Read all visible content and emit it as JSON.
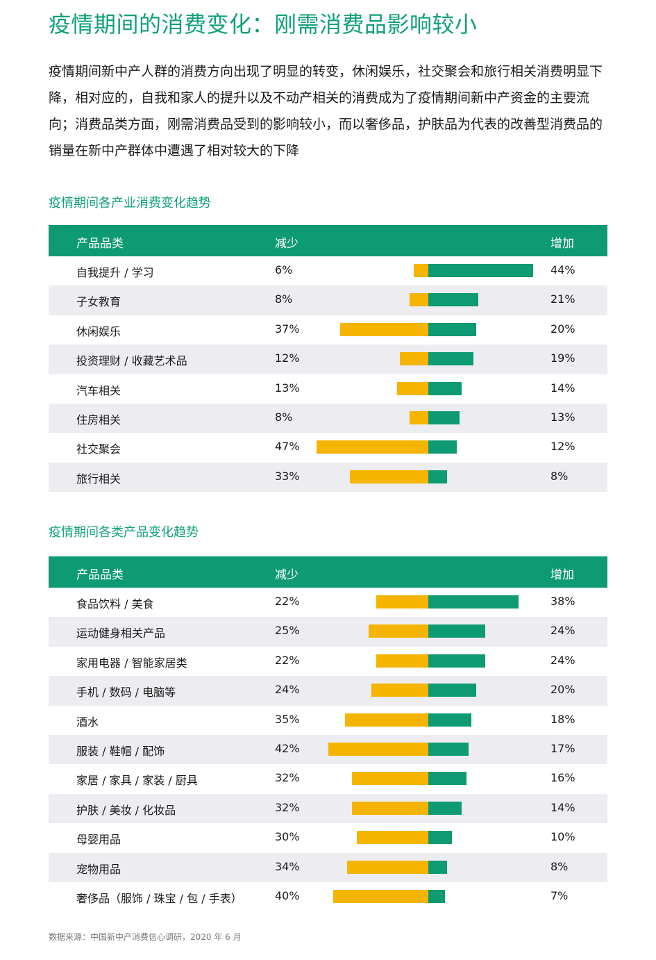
{
  "page": {
    "title": "疫情期间的消费变化：刚需消费品影响较小",
    "intro": "疫情期间新中产人群的消费方向出现了明显的转变，休闲娱乐，社交聚会和旅行相关消费明显下降，相对应的，自我和家人的提升以及不动产相关的消费成为了疫情期间新中产资金的主要流向；消费品类方面，刚需消费品受到的影响较小，而以奢侈品，护肤品为代表的改善型消费品的销量在新中产群体中遭遇了相对较大的下降",
    "source": "数据来源：中国新中产消费信心调研，2020 年 6 月"
  },
  "colors": {
    "increase": "#0e9a72",
    "decrease": "#f5b400",
    "title": "#10a07a",
    "header_bg": "#0e9a72",
    "row_alt": "#ededf1"
  },
  "chart_data": [
    {
      "type": "bar",
      "title": "疫情期间各产业消费变化趋势",
      "headers": {
        "category": "产品品类",
        "decrease": "减少",
        "increase": "增加"
      },
      "categories": [
        "自我提升 / 学习",
        "子女教育",
        "休闲娱乐",
        "投资理财 / 收藏艺术品",
        "汽车相关",
        "住房相关",
        "社交聚会",
        "旅行相关"
      ],
      "series": [
        {
          "name": "减少",
          "values": [
            6,
            8,
            37,
            12,
            13,
            8,
            47,
            33
          ]
        },
        {
          "name": "增加",
          "values": [
            44,
            21,
            20,
            19,
            14,
            13,
            12,
            8
          ]
        }
      ],
      "labels": {
        "decrease": [
          "6%",
          "8%",
          "37%",
          "12%",
          "13%",
          "8%",
          "47%",
          "33%"
        ],
        "increase": [
          "44%",
          "21%",
          "20%",
          "19%",
          "14%",
          "13%",
          "12%",
          "8%"
        ]
      }
    },
    {
      "type": "bar",
      "title": "疫情期间各类产品变化趋势",
      "headers": {
        "category": "产品品类",
        "decrease": "减少",
        "increase": "增加"
      },
      "categories": [
        "食品饮料 / 美食",
        "运动健身相关产品",
        "家用电器 / 智能家居类",
        "手机 / 数码 / 电脑等",
        "酒水",
        "服装 / 鞋帽 / 配饰",
        "家居 / 家具 / 家装 / 厨具",
        "护肤 / 美妆 / 化妆品",
        "母婴用品",
        "宠物用品",
        "奢侈品（服饰 / 珠宝 / 包 / 手表）"
      ],
      "series": [
        {
          "name": "减少",
          "values": [
            22,
            25,
            22,
            24,
            35,
            42,
            32,
            32,
            30,
            34,
            40
          ]
        },
        {
          "name": "增加",
          "values": [
            38,
            24,
            24,
            20,
            18,
            17,
            16,
            14,
            10,
            8,
            7
          ]
        }
      ],
      "labels": {
        "decrease": [
          "22%",
          "25%",
          "22%",
          "24%",
          "35%",
          "42%",
          "32%",
          "32%",
          "30%",
          "34%",
          "40%"
        ],
        "increase": [
          "38%",
          "24%",
          "24%",
          "20%",
          "18%",
          "17%",
          "16%",
          "14%",
          "10%",
          "8%",
          "7%"
        ]
      }
    }
  ]
}
